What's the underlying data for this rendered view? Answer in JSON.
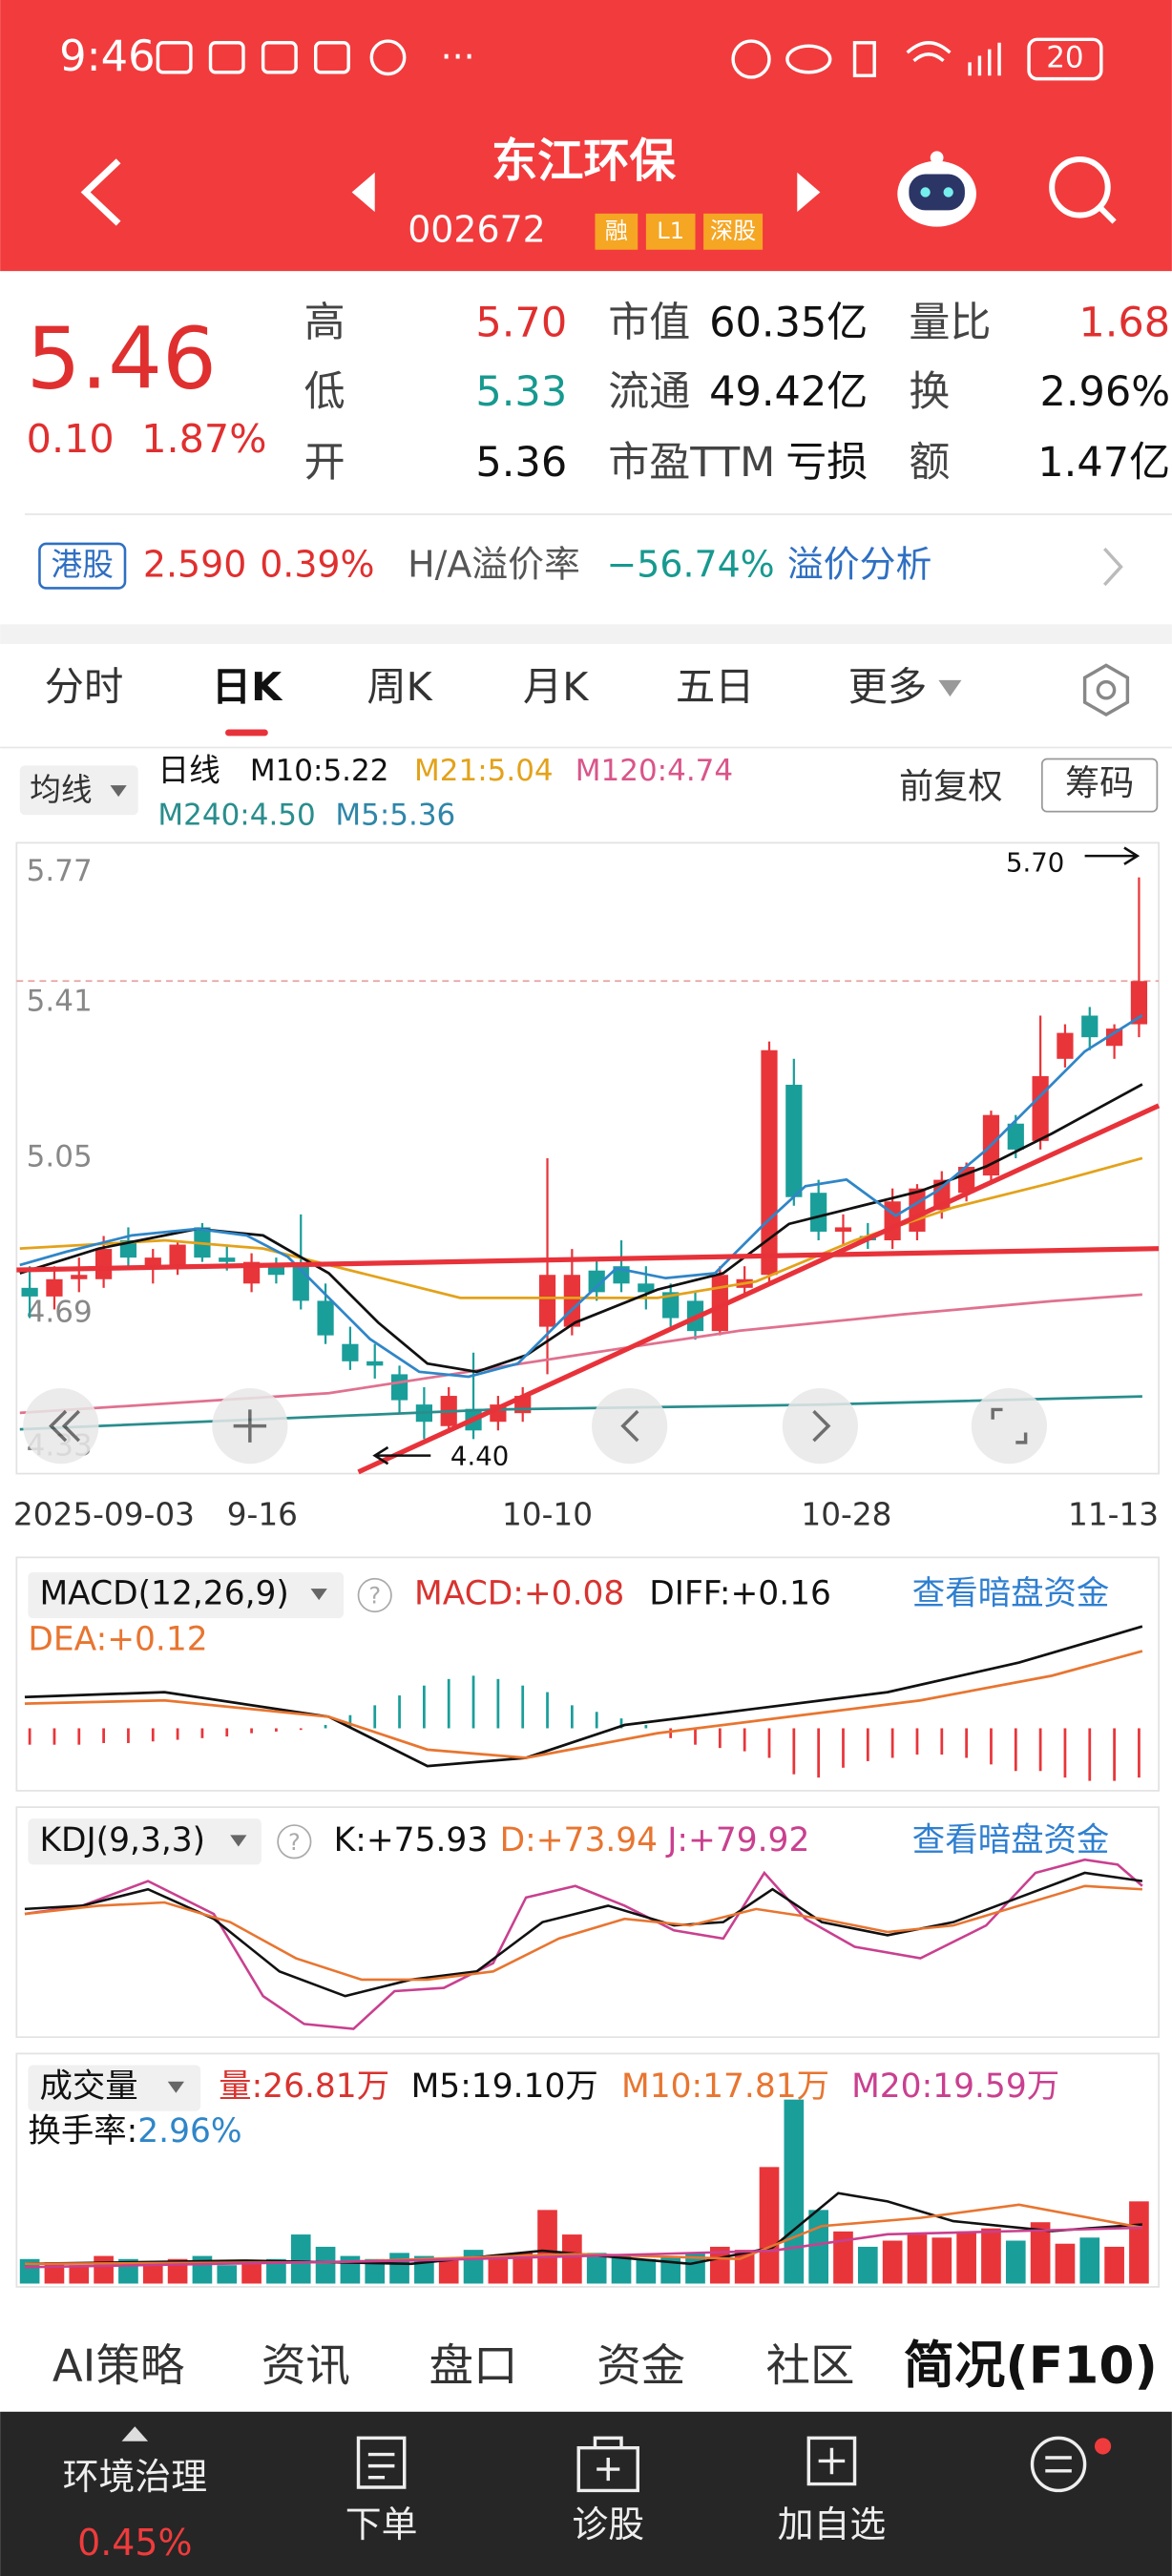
{
  "status": {
    "time": "9:46",
    "battery": "20"
  },
  "header": {
    "title": "东江环保",
    "code": "002672",
    "tags": [
      "融",
      "L1",
      "深股"
    ]
  },
  "quote": {
    "price": "5.46",
    "change": "0.10",
    "pct": "1.87%",
    "stats": [
      {
        "label": "高",
        "value": "5.70"
      },
      {
        "label": "市值",
        "value": "60.35亿"
      },
      {
        "label": "量比",
        "value": "1.68"
      },
      {
        "label": "低",
        "value": "5.33"
      },
      {
        "label": "流通",
        "value": "49.42亿"
      },
      {
        "label": "换",
        "value": "2.96%"
      },
      {
        "label": "开",
        "value": "5.36"
      },
      {
        "label": "市盈TTM",
        "value": "亏损"
      },
      {
        "label": "额",
        "value": "1.47亿"
      }
    ]
  },
  "hk": {
    "tag": "港股",
    "price": "2.590",
    "pct": "0.39%",
    "premium_label": "H/A溢价率",
    "premium": "−56.74%",
    "link": "溢价分析"
  },
  "tabs": [
    "分时",
    "日K",
    "周K",
    "月K",
    "五日",
    "更多"
  ],
  "kline": {
    "ma_button": "均线",
    "period": "日线",
    "ma": [
      "M10:5.22",
      "M21:5.04",
      "M120:4.74",
      "M240:4.50",
      "M5:5.36"
    ],
    "adjust": "前复权",
    "chips": "筹码",
    "ylim": [
      4.32,
      5.78
    ],
    "yticks": [
      5.77,
      5.41,
      5.05,
      4.69,
      4.33
    ],
    "high_label": "5.70",
    "low_label": "4.40",
    "xlabels": [
      "2025-09-03",
      "9-16",
      "10-10",
      "10-28",
      "11-13"
    ],
    "candles": [
      {
        "o": 4.75,
        "h": 4.8,
        "l": 4.68,
        "c": 4.73
      },
      {
        "o": 4.73,
        "h": 4.8,
        "l": 4.7,
        "c": 4.77
      },
      {
        "o": 4.77,
        "h": 4.82,
        "l": 4.74,
        "c": 4.78
      },
      {
        "o": 4.77,
        "h": 4.87,
        "l": 4.75,
        "c": 4.84
      },
      {
        "o": 4.86,
        "h": 4.89,
        "l": 4.8,
        "c": 4.82
      },
      {
        "o": 4.8,
        "h": 4.84,
        "l": 4.76,
        "c": 4.82
      },
      {
        "o": 4.8,
        "h": 4.86,
        "l": 4.78,
        "c": 4.85
      },
      {
        "o": 4.89,
        "h": 4.9,
        "l": 4.81,
        "c": 4.82
      },
      {
        "o": 4.82,
        "h": 4.85,
        "l": 4.79,
        "c": 4.81
      },
      {
        "o": 4.76,
        "h": 4.83,
        "l": 4.74,
        "c": 4.81
      },
      {
        "o": 4.8,
        "h": 4.82,
        "l": 4.76,
        "c": 4.78
      },
      {
        "o": 4.8,
        "h": 4.92,
        "l": 4.7,
        "c": 4.72
      },
      {
        "o": 4.72,
        "h": 4.76,
        "l": 4.62,
        "c": 4.64
      },
      {
        "o": 4.62,
        "h": 4.66,
        "l": 4.56,
        "c": 4.58
      },
      {
        "o": 4.58,
        "h": 4.62,
        "l": 4.54,
        "c": 4.57
      },
      {
        "o": 4.55,
        "h": 4.57,
        "l": 4.46,
        "c": 4.49
      },
      {
        "o": 4.48,
        "h": 4.52,
        "l": 4.4,
        "c": 4.44
      },
      {
        "o": 4.43,
        "h": 4.52,
        "l": 4.42,
        "c": 4.5
      },
      {
        "o": 4.47,
        "h": 4.6,
        "l": 4.4,
        "c": 4.42
      },
      {
        "o": 4.44,
        "h": 4.5,
        "l": 4.42,
        "c": 4.48
      },
      {
        "o": 4.46,
        "h": 4.52,
        "l": 4.44,
        "c": 4.5
      },
      {
        "o": 4.66,
        "h": 5.05,
        "l": 4.55,
        "c": 4.78
      },
      {
        "o": 4.66,
        "h": 4.84,
        "l": 4.64,
        "c": 4.78
      },
      {
        "o": 4.79,
        "h": 4.82,
        "l": 4.72,
        "c": 4.74
      },
      {
        "o": 4.8,
        "h": 4.86,
        "l": 4.74,
        "c": 4.76
      },
      {
        "o": 4.76,
        "h": 4.8,
        "l": 4.7,
        "c": 4.74
      },
      {
        "o": 4.74,
        "h": 4.76,
        "l": 4.66,
        "c": 4.68
      },
      {
        "o": 4.72,
        "h": 4.74,
        "l": 4.63,
        "c": 4.65
      },
      {
        "o": 4.65,
        "h": 4.8,
        "l": 4.64,
        "c": 4.78
      },
      {
        "o": 4.75,
        "h": 4.8,
        "l": 4.73,
        "c": 4.77
      },
      {
        "o": 4.78,
        "h": 5.32,
        "l": 4.76,
        "c": 5.3
      },
      {
        "o": 5.22,
        "h": 5.28,
        "l": 4.94,
        "c": 4.96
      },
      {
        "o": 4.97,
        "h": 5.0,
        "l": 4.86,
        "c": 4.88
      },
      {
        "o": 4.88,
        "h": 4.92,
        "l": 4.85,
        "c": 4.89
      },
      {
        "o": 4.87,
        "h": 4.9,
        "l": 4.84,
        "c": 4.86
      },
      {
        "o": 4.86,
        "h": 4.98,
        "l": 4.84,
        "c": 4.95
      },
      {
        "o": 4.88,
        "h": 4.99,
        "l": 4.86,
        "c": 4.98
      },
      {
        "o": 4.93,
        "h": 5.02,
        "l": 4.91,
        "c": 5.0
      },
      {
        "o": 4.97,
        "h": 5.04,
        "l": 4.95,
        "c": 5.03
      },
      {
        "o": 5.01,
        "h": 5.16,
        "l": 4.99,
        "c": 5.15
      },
      {
        "o": 5.13,
        "h": 5.15,
        "l": 5.05,
        "c": 5.07
      },
      {
        "o": 5.09,
        "h": 5.38,
        "l": 5.07,
        "c": 5.24
      },
      {
        "o": 5.28,
        "h": 5.36,
        "l": 5.26,
        "c": 5.34
      },
      {
        "o": 5.38,
        "h": 5.4,
        "l": 5.3,
        "c": 5.33
      },
      {
        "o": 5.31,
        "h": 5.36,
        "l": 5.28,
        "c": 5.35
      },
      {
        "o": 5.36,
        "h": 5.7,
        "l": 5.33,
        "c": 5.46
      }
    ]
  },
  "macd": {
    "name": "MACD(12,26,9)",
    "macd": "MACD:+0.08",
    "diff": "DIFF:+0.16",
    "dea": "DEA:+0.12",
    "link": "查看暗盘资金"
  },
  "kdj": {
    "name": "KDJ(9,3,3)",
    "k": "K:+75.93",
    "d": "D:+73.94",
    "j": "J:+79.92",
    "link": "查看暗盘资金"
  },
  "volume": {
    "name": "成交量",
    "vol": "量:26.81万",
    "m5": "M5:19.10万",
    "m10": "M10:17.81万",
    "m20": "M20:19.59万",
    "turnover_label": "换手率:",
    "turnover": "2.96%",
    "values": [
      8,
      7,
      6,
      9,
      8,
      7,
      8,
      9,
      6,
      7,
      8,
      16,
      12,
      9,
      8,
      10,
      9,
      8,
      11,
      9,
      10,
      24,
      16,
      10,
      9,
      8,
      9,
      10,
      12,
      11,
      38,
      60,
      24,
      17,
      12,
      14,
      16,
      15,
      17,
      18,
      14,
      20,
      13,
      15,
      12,
      26.81
    ]
  },
  "bottom_tabs": [
    "AI策略",
    "资讯",
    "盘口",
    "资金",
    "社区",
    "简况(F10)"
  ],
  "nav": {
    "sector": "环境治理",
    "sector_pct": "0.45%",
    "items": [
      "下单",
      "诊股",
      "加自选"
    ]
  }
}
